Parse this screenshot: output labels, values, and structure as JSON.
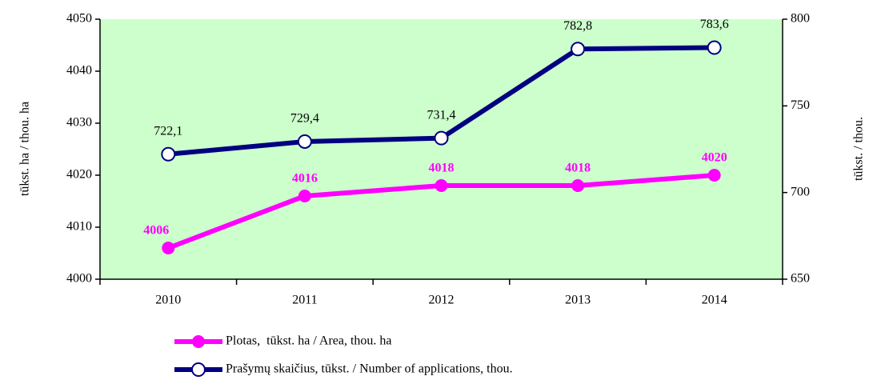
{
  "chart_data": {
    "type": "line",
    "y_label": "tūkst. ha / thou. ha",
    "y2_label": "tūkst. / thou.",
    "categories": [
      "2010",
      "2011",
      "2012",
      "2013",
      "2014"
    ],
    "series": [
      {
        "name": "Plotas,  tūkst. ha / Area, thou. ha",
        "color": "#ff00ff",
        "values": [
          4006,
          4016,
          4018,
          4018,
          4020
        ]
      },
      {
        "name": "Prašymų skaičius, tūkst. / Number of applications, thou.",
        "color": "#000080",
        "axis": "y2",
        "values": [
          722.1,
          729.4,
          731.4,
          782.8,
          783.6
        ],
        "value_labels": [
          "722,1",
          "729,4",
          "731,4",
          "782,8",
          "783,6"
        ]
      }
    ],
    "ylim": [
      4000,
      4050
    ],
    "yticks": [
      4000,
      4010,
      4020,
      4030,
      4040,
      4050
    ],
    "y2lim": [
      650,
      800
    ],
    "y2ticks": [
      650,
      700,
      750,
      800
    ],
    "plot_background": "#ccffcc",
    "legend": "bottom"
  }
}
